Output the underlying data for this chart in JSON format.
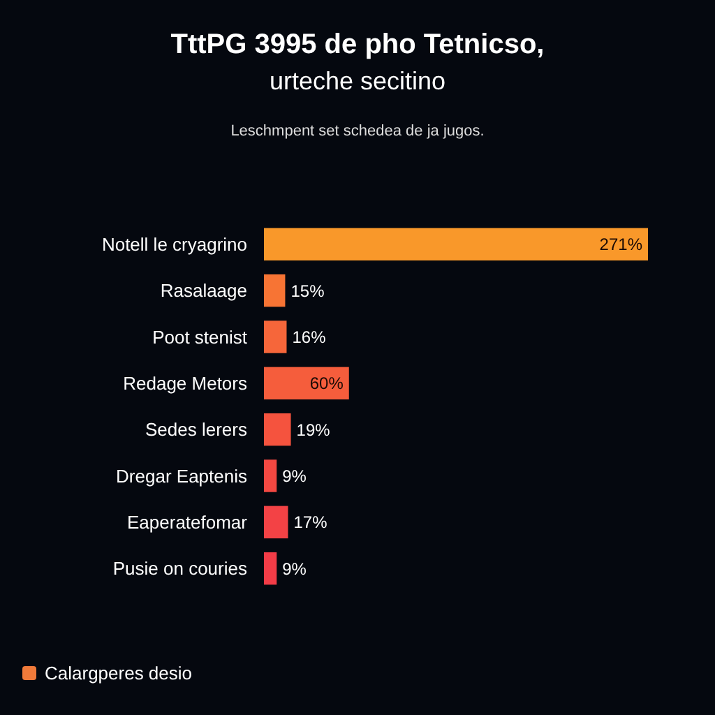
{
  "chart_data": {
    "type": "bar",
    "orientation": "horizontal",
    "title": "TttPG 3995 de pho Tetnicso,",
    "subtitle": "urteche secitino",
    "annotations": [
      "Leschmpent set schedea de ja jugos."
    ],
    "categories": [
      "Notell le cryagrino",
      "Rasalaage",
      "Poot stenist",
      "Redage Metors",
      "Sedes lerers",
      "Dregar Eaptenis",
      "Eaperatefomar",
      "Pusie on couries"
    ],
    "series": [
      {
        "name": "Calargperes desio",
        "color": "#f07a3a",
        "values": [
          271,
          15,
          16,
          60,
          19,
          9,
          17,
          9
        ],
        "colors": [
          "#f9982a",
          "#f77434",
          "#f6663a",
          "#f55d3c",
          "#f5533e",
          "#f44842",
          "#f34245",
          "#f33c47"
        ],
        "value_labels": [
          "271%",
          "15%",
          "16%",
          "60%",
          "19%",
          "9%",
          "17%",
          "9%"
        ]
      }
    ],
    "legend": "bottom left"
  }
}
